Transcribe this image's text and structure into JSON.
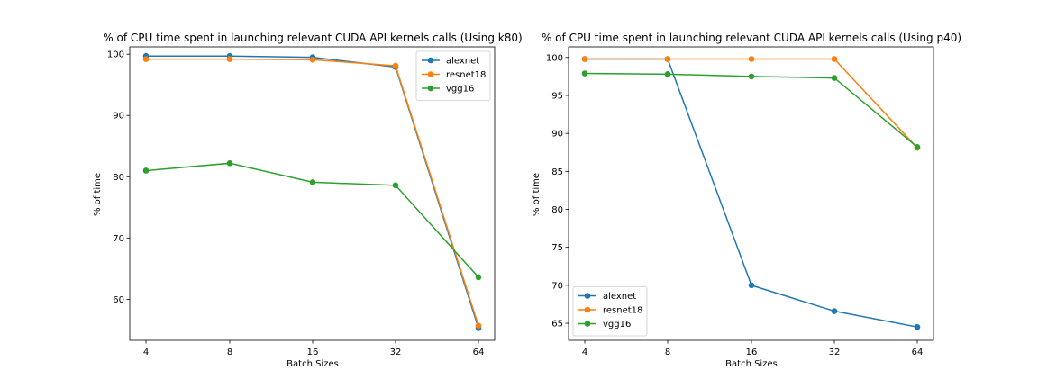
{
  "chart_data": [
    {
      "type": "line",
      "title": "% of CPU time spent in launching relevant CUDA API kernels calls (Using k80)",
      "xlabel": "Batch Sizes",
      "ylabel": "% of time",
      "categories": [
        "4",
        "8",
        "16",
        "32",
        "64"
      ],
      "ylim": [
        53.3,
        101.2
      ],
      "yticks": [
        60,
        70,
        80,
        90,
        100
      ],
      "legend_position": "top-right",
      "grid": false,
      "series": [
        {
          "name": "alexnet",
          "color": "#1f77b4",
          "values": [
            99.7,
            99.7,
            99.5,
            97.9,
            55.3
          ]
        },
        {
          "name": "resnet18",
          "color": "#ff7f0e",
          "values": [
            99.2,
            99.2,
            99.1,
            98.1,
            55.7
          ]
        },
        {
          "name": "vgg16",
          "color": "#2ca02c",
          "values": [
            81.0,
            82.2,
            79.1,
            78.6,
            63.6
          ]
        }
      ]
    },
    {
      "type": "line",
      "title": "% of CPU time spent in launching relevant CUDA API kernels calls (Using p40)",
      "xlabel": "Batch Sizes",
      "ylabel": "% of time",
      "categories": [
        "4",
        "8",
        "16",
        "32",
        "64"
      ],
      "ylim": [
        62.75,
        101.4
      ],
      "yticks": [
        65,
        70,
        75,
        80,
        85,
        90,
        95,
        100
      ],
      "legend_position": "bottom-left",
      "grid": false,
      "series": [
        {
          "name": "alexnet",
          "color": "#1f77b4",
          "values": [
            99.8,
            99.8,
            70.0,
            66.6,
            64.5
          ]
        },
        {
          "name": "resnet18",
          "color": "#ff7f0e",
          "values": [
            99.8,
            99.8,
            99.8,
            99.8,
            88.1
          ]
        },
        {
          "name": "vgg16",
          "color": "#2ca02c",
          "values": [
            97.9,
            97.8,
            97.5,
            97.3,
            88.2
          ]
        }
      ]
    }
  ]
}
